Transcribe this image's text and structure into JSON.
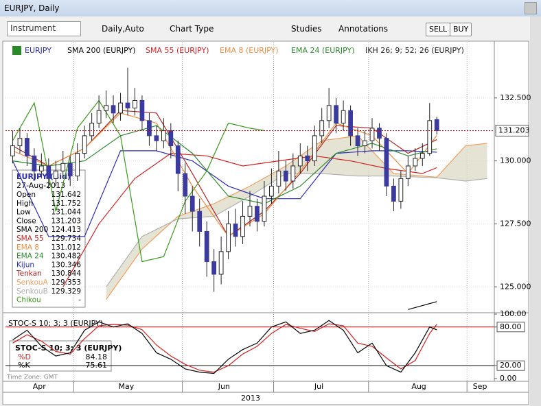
{
  "window": {
    "title": "EURJPY, Daily"
  },
  "toolbar": {
    "instrument": "Instrument",
    "period": "Daily,",
    "scale": "Auto",
    "chart_type": "Chart Type",
    "studies": "Studies",
    "annotations": "Annotations",
    "sell": "SELL",
    "buy": "BUY"
  },
  "chart_data": [
    {
      "type": "candlestick",
      "name": "EURJPY",
      "x": [
        0,
        1,
        2,
        3,
        4,
        5,
        6,
        7,
        8,
        9,
        10,
        11,
        12,
        13,
        14,
        15,
        16,
        17,
        18,
        19,
        20,
        21,
        22,
        23,
        24,
        25,
        26,
        27,
        28,
        29,
        30,
        31,
        32,
        33,
        34,
        35,
        36,
        37,
        38,
        39,
        40,
        41,
        42,
        43,
        44,
        45,
        46,
        47,
        48,
        49,
        50,
        51,
        52,
        53,
        54,
        55,
        56,
        57,
        58,
        59
      ],
      "open": [
        130.2,
        130.6,
        130.9,
        130.2,
        129.6,
        129.8,
        129.3,
        129.6,
        129.9,
        129.4,
        130.3,
        131.0,
        131.5,
        132.0,
        132.2,
        131.9,
        132.3,
        132.1,
        132.4,
        131.6,
        131.0,
        130.8,
        131.2,
        130.6,
        129.5,
        128.6,
        128.0,
        127.2,
        126.0,
        125.5,
        126.4,
        127.5,
        127.0,
        127.8,
        128.2,
        127.6,
        128.6,
        129.0,
        129.6,
        129.2,
        129.8,
        130.2,
        130.0,
        131.0,
        131.6,
        132.2,
        131.5,
        132.0,
        131.0,
        130.6,
        130.8,
        131.3,
        130.9,
        129.0,
        128.4,
        129.3,
        129.8,
        130.1,
        130.3,
        131.642
      ],
      "high": [
        131.2,
        131.3,
        131.1,
        130.5,
        130.3,
        130.1,
        130.0,
        130.4,
        130.2,
        130.7,
        131.4,
        131.9,
        132.6,
        132.8,
        132.6,
        132.7,
        133.7,
        132.9,
        132.6,
        131.9,
        131.4,
        131.7,
        131.5,
        130.8,
        129.9,
        129.0,
        128.5,
        127.6,
        126.5,
        127.0,
        128.0,
        128.1,
        128.4,
        128.8,
        128.5,
        129.2,
        129.7,
        130.4,
        130.0,
        130.3,
        130.7,
        130.6,
        131.4,
        132.1,
        132.9,
        132.5,
        132.4,
        132.2,
        131.3,
        131.2,
        131.7,
        131.5,
        131.1,
        129.3,
        129.6,
        130.2,
        130.5,
        130.7,
        132.3,
        131.752
      ],
      "low": [
        129.9,
        130.3,
        129.8,
        129.2,
        129.3,
        128.9,
        129.0,
        129.3,
        129.0,
        129.2,
        130.1,
        130.8,
        131.3,
        131.7,
        131.5,
        131.6,
        131.8,
        131.8,
        131.2,
        130.6,
        130.4,
        130.5,
        130.1,
        128.8,
        127.9,
        127.2,
        126.6,
        125.4,
        124.8,
        125.1,
        126.1,
        126.6,
        126.7,
        127.4,
        127.2,
        127.4,
        128.3,
        128.7,
        128.8,
        128.9,
        129.5,
        129.6,
        129.8,
        130.7,
        131.3,
        131.1,
        131.2,
        130.6,
        130.2,
        130.3,
        130.5,
        130.4,
        128.6,
        128.0,
        128.1,
        129.0,
        129.6,
        129.8,
        130.2,
        131.044
      ],
      "close": [
        130.6,
        130.9,
        130.2,
        129.6,
        129.8,
        129.3,
        129.6,
        129.9,
        129.4,
        130.3,
        131.0,
        131.5,
        132.0,
        132.2,
        131.9,
        132.3,
        132.1,
        132.4,
        131.6,
        131.0,
        130.8,
        131.2,
        130.6,
        129.5,
        128.6,
        128.0,
        127.2,
        126.0,
        125.5,
        126.4,
        127.5,
        127.0,
        127.8,
        128.2,
        127.6,
        128.6,
        129.0,
        129.6,
        129.2,
        129.8,
        130.2,
        130.0,
        131.0,
        131.6,
        132.2,
        131.5,
        132.0,
        131.0,
        130.6,
        130.8,
        131.3,
        130.9,
        129.0,
        128.4,
        129.3,
        129.8,
        130.1,
        130.3,
        131.6,
        131.203
      ],
      "up_color": "#ffffff",
      "down_color": "#3b3b9e",
      "series": [
        {
          "name": "SMA 200 (EURJPY)",
          "color": "#000000",
          "x": [
            55,
            59
          ],
          "values": [
            124.1,
            124.413
          ]
        },
        {
          "name": "SMA 55 (EURJPY)",
          "color": "#d42020",
          "x": [
            7,
            12,
            17,
            22,
            27,
            32,
            37,
            42,
            47,
            52,
            57,
            59
          ],
          "values": [
            125.0,
            127.5,
            129.3,
            130.3,
            130.2,
            129.8,
            130.0,
            130.2,
            130.0,
            129.7,
            129.5,
            129.734
          ]
        },
        {
          "name": "EMA 8 (EURJPY)",
          "color": "#f08c3c",
          "x": [
            0,
            5,
            10,
            15,
            20,
            25,
            30,
            35,
            40,
            45,
            50,
            55,
            59
          ],
          "values": [
            130.4,
            129.8,
            130.5,
            131.9,
            131.5,
            129.0,
            127.0,
            127.9,
            129.6,
            131.5,
            131.0,
            129.5,
            131.012
          ]
        },
        {
          "name": "EMA 24 (EURJPY)",
          "color": "#2a8a2a",
          "x": [
            0,
            5,
            10,
            15,
            20,
            25,
            30,
            35,
            40,
            45,
            50,
            55,
            59
          ],
          "values": [
            130.0,
            129.8,
            130.0,
            131.0,
            131.4,
            130.3,
            128.6,
            128.3,
            129.0,
            130.3,
            130.7,
            130.2,
            130.482
          ]
        }
      ],
      "ikh": {
        "name": "IKH 26; 9; 52; 26 (EURJPY)",
        "cloud_color": "#dcdac4",
        "kijun": {
          "color": "#2b2bb8",
          "x": [
            0,
            5,
            10,
            15,
            20,
            25,
            30,
            35,
            40,
            45,
            50,
            55,
            59
          ],
          "values": [
            130.0,
            127.0,
            127.0,
            130.4,
            130.4,
            130.0,
            129.0,
            128.5,
            128.5,
            130.3,
            130.4,
            130.4,
            130.346
          ]
        },
        "tenkan": {
          "color": "#b02020",
          "x": [
            0,
            5,
            10,
            15,
            20,
            25,
            30,
            35,
            40,
            45,
            50,
            55,
            59
          ],
          "values": [
            130.6,
            129.8,
            130.5,
            132.0,
            131.9,
            129.5,
            127.0,
            128.0,
            129.5,
            131.4,
            131.3,
            130.3,
            130.844
          ]
        },
        "senkou_a": {
          "color": "#f0a060",
          "x": [
            13,
            18,
            23,
            28,
            33,
            38,
            43,
            48,
            53,
            59,
            63,
            66
          ],
          "values": [
            124.5,
            126.5,
            127.8,
            128.3,
            129.0,
            129.8,
            130.8,
            131.0,
            129.5,
            129.353,
            130.6,
            130.7
          ]
        },
        "senkou_b": {
          "color": "#b0b0b0",
          "x": [
            13,
            18,
            23,
            28,
            33,
            38,
            43,
            48,
            53,
            59,
            63,
            66
          ],
          "values": [
            125.0,
            127.0,
            127.7,
            127.8,
            128.6,
            129.5,
            129.5,
            129.4,
            129.4,
            129.329,
            129.2,
            129.3
          ]
        },
        "chikou": {
          "color": "#3a9a1a",
          "x": [
            0,
            3,
            6,
            9,
            12,
            15,
            18,
            21,
            24,
            27,
            30,
            33,
            35
          ],
          "values": [
            130.8,
            132.3,
            128.0,
            131.3,
            132.4,
            131.0,
            126.0,
            126.2,
            128.4,
            129.6,
            131.5,
            131.3,
            131.203
          ]
        }
      },
      "last_price": 131.203,
      "xlim": [
        -1,
        67
      ],
      "ylim": [
        124.0,
        134.7
      ],
      "yticks": [
        {
          "value": 125,
          "label": "125.000"
        },
        {
          "value": 127.5,
          "label": "127.500"
        },
        {
          "value": 130,
          "label": "130.000"
        },
        {
          "value": 132.5,
          "label": "132.500"
        }
      ],
      "xticks": [
        {
          "value": 3.7,
          "label": "Apr"
        },
        {
          "value": 15.8,
          "label": "May"
        },
        {
          "value": 29.4,
          "label": "Jun"
        },
        {
          "value": 42.6,
          "label": "Jul"
        },
        {
          "value": 56.5,
          "label": "Aug"
        },
        {
          "value": 65,
          "label": "Sep"
        }
      ],
      "xgrid": [
        8.5,
        23.6,
        36.3,
        49.5,
        63.2
      ],
      "year": "2013",
      "grid": true
    },
    {
      "type": "line",
      "name": "STOC-S 10; 3; 3 (EURJPY)",
      "x": [
        0,
        2,
        4,
        6,
        8,
        10,
        12,
        14,
        16,
        18,
        20,
        22,
        24,
        26,
        28,
        30,
        32,
        34,
        36,
        38,
        40,
        42,
        44,
        46,
        48,
        50,
        52,
        54,
        56,
        58,
        59
      ],
      "series": [
        {
          "name": "%D",
          "color": "#d42020",
          "values": [
            55,
            68,
            58,
            42,
            38,
            62,
            82,
            84,
            83,
            76,
            52,
            35,
            22,
            13,
            10,
            20,
            38,
            50,
            70,
            84,
            78,
            73,
            85,
            82,
            55,
            50,
            32,
            15,
            28,
            70,
            84.18
          ]
        },
        {
          "name": "%K",
          "color": "#000000",
          "values": [
            60,
            75,
            50,
            35,
            40,
            75,
            88,
            80,
            85,
            70,
            40,
            30,
            15,
            10,
            8,
            30,
            45,
            55,
            80,
            88,
            70,
            75,
            90,
            75,
            40,
            55,
            20,
            10,
            40,
            80,
            75.61
          ]
        }
      ],
      "xlim": [
        -1,
        67
      ],
      "ylim": [
        0,
        100
      ],
      "yticks": [
        {
          "value": 0,
          "label": "0.00"
        },
        {
          "value": 20,
          "label": "20.00"
        },
        {
          "value": 80,
          "label": "80.00"
        },
        {
          "value": 100,
          "label": "100.00"
        }
      ],
      "levels": [
        {
          "value": 80,
          "color": "#c00000"
        },
        {
          "value": 20,
          "color": "#000000"
        }
      ]
    }
  ],
  "info_panel": {
    "title": "EURJPY (Bid)",
    "date": "27-Aug-2013",
    "labels": [
      "Open",
      "High",
      "Low",
      "Close",
      "SMA 200",
      "SMA 55",
      "EMA 8",
      "EMA 24",
      "Kijun",
      "Tenkan",
      "SenkouA",
      "SenkouB",
      "Chikou"
    ],
    "chikou_value": "-"
  },
  "status": {
    "time_zone": "Time Zone: GMT"
  }
}
